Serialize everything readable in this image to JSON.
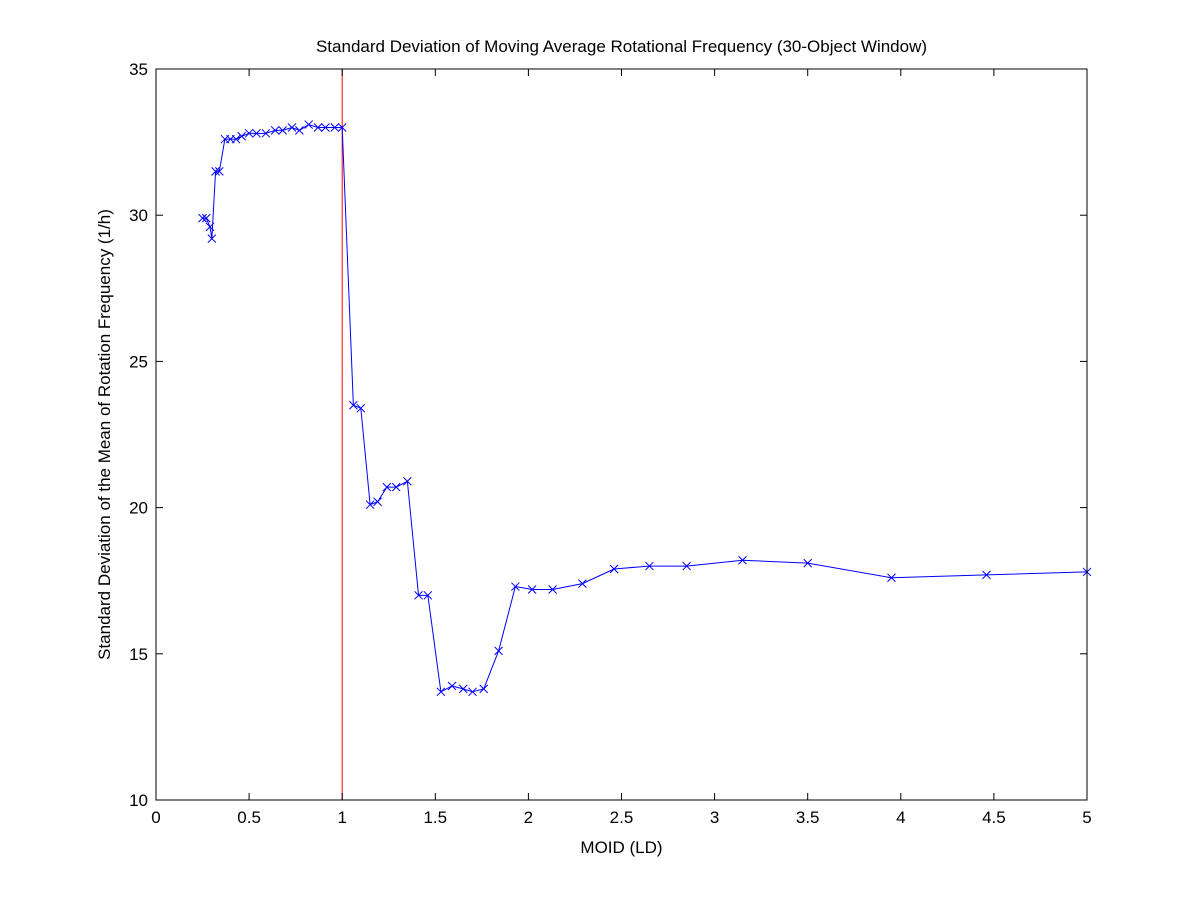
{
  "chart_data": {
    "type": "line",
    "title": "Standard Deviation of Moving Average Rotational Frequency (30-Object Window)",
    "xlabel": "MOID (LD)",
    "ylabel": "Standard Deviation of the Mean of Rotation Frequency (1/h)",
    "xlim": [
      0,
      5
    ],
    "ylim": [
      10,
      35
    ],
    "xticks": [
      0,
      0.5,
      1,
      1.5,
      2,
      2.5,
      3,
      3.5,
      4,
      4.5,
      5
    ],
    "xtick_labels": [
      "0",
      "0.5",
      "1",
      "1.5",
      "2",
      "2.5",
      "3",
      "3.5",
      "4",
      "4.5",
      "5"
    ],
    "yticks": [
      10,
      15,
      20,
      25,
      30,
      35
    ],
    "ytick_labels": [
      "10",
      "15",
      "20",
      "25",
      "30",
      "35"
    ],
    "grid": false,
    "series": [
      {
        "color": "#0000ff",
        "marker": "x",
        "x": [
          0.25,
          0.27,
          0.29,
          0.3,
          0.32,
          0.34,
          0.37,
          0.4,
          0.43,
          0.46,
          0.5,
          0.54,
          0.59,
          0.64,
          0.68,
          0.73,
          0.77,
          0.82,
          0.87,
          0.91,
          0.96,
          1.0,
          1.06,
          1.1,
          1.15,
          1.19,
          1.24,
          1.29,
          1.35,
          1.41,
          1.46,
          1.53,
          1.59,
          1.65,
          1.7,
          1.76,
          1.84,
          1.93,
          2.02,
          2.13,
          2.29,
          2.46,
          2.65,
          2.85,
          3.15,
          3.5,
          3.95,
          4.46,
          5.0
        ],
        "y": [
          29.9,
          29.9,
          29.6,
          29.2,
          31.5,
          31.5,
          32.6,
          32.6,
          32.6,
          32.7,
          32.8,
          32.8,
          32.8,
          32.9,
          32.9,
          33.0,
          32.9,
          33.1,
          33.0,
          33.0,
          33.0,
          33.0,
          23.5,
          23.4,
          20.1,
          20.2,
          20.7,
          20.7,
          20.9,
          17.0,
          17.0,
          13.7,
          13.9,
          13.8,
          13.7,
          13.8,
          15.1,
          17.3,
          17.2,
          17.2,
          17.4,
          17.9,
          18.0,
          18.0,
          18.2,
          18.1,
          17.6,
          17.7,
          17.8
        ]
      }
    ],
    "reference_lines": [
      {
        "orientation": "vertical",
        "x": 1,
        "color": "#ff0000"
      }
    ]
  }
}
